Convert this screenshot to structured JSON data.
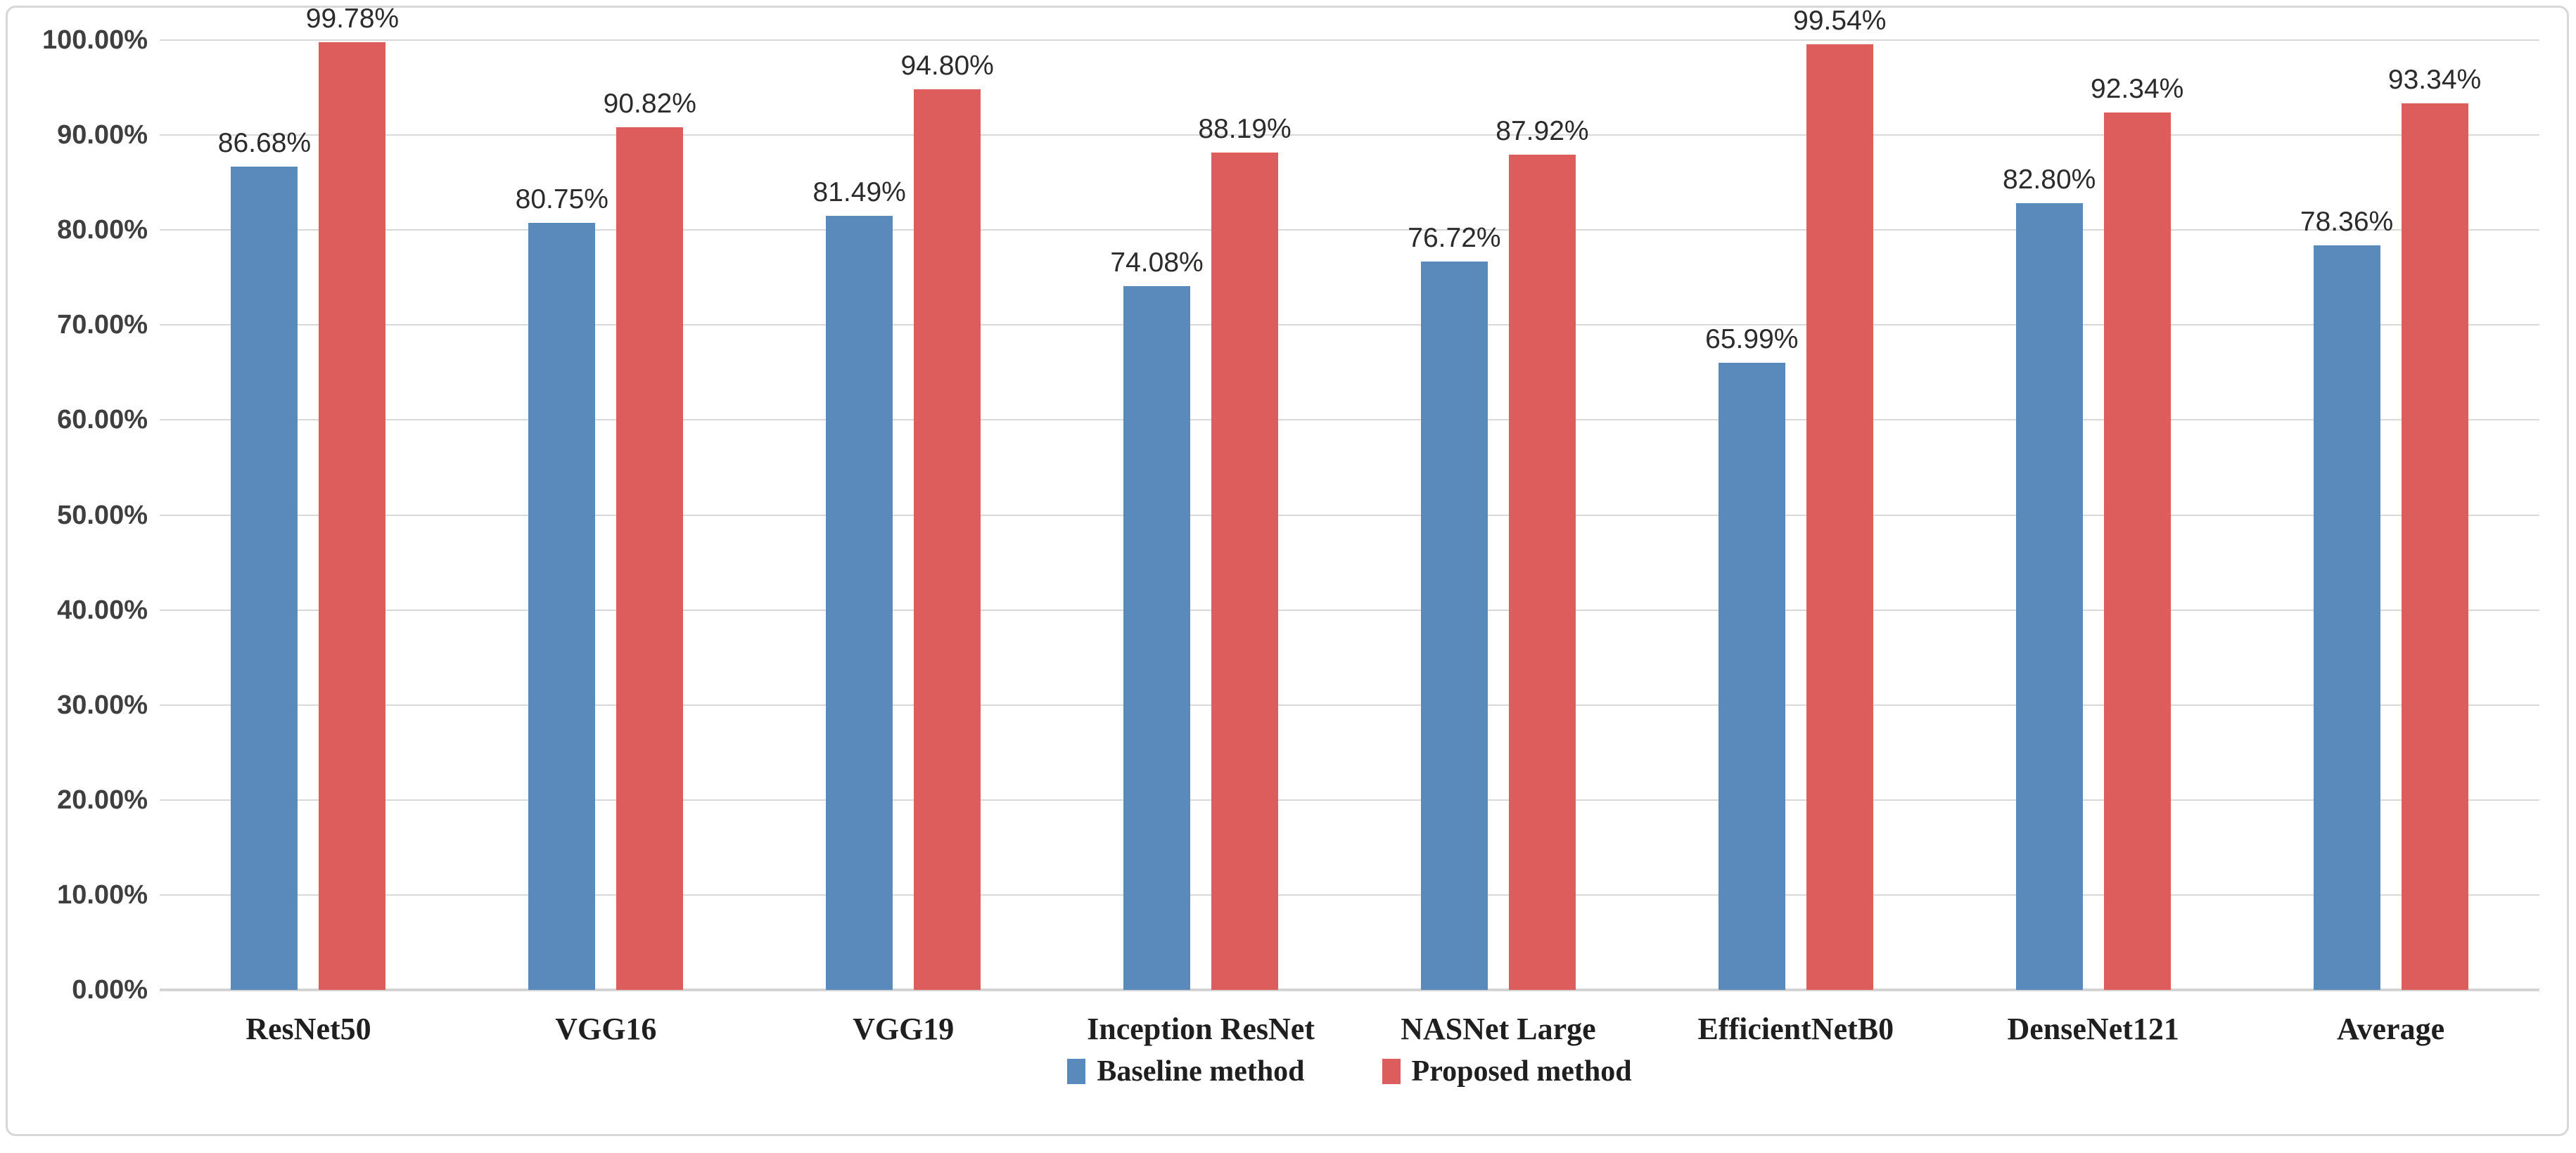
{
  "chart_data": {
    "type": "bar",
    "title": "",
    "xlabel": "",
    "ylabel": "",
    "categories": [
      "ResNet50",
      "VGG16",
      "VGG19",
      "Inception ResNet",
      "NASNet Large",
      "EfficientNetB0",
      "DenseNet121",
      "Average"
    ],
    "series": [
      {
        "name": "Baseline method",
        "color": "#5a89bc",
        "values": [
          86.68,
          80.75,
          81.49,
          74.08,
          76.72,
          65.99,
          82.8,
          78.36
        ]
      },
      {
        "name": "Proposed method",
        "color": "#dd5c5c",
        "values": [
          99.78,
          90.82,
          94.8,
          88.19,
          87.92,
          99.54,
          92.34,
          93.34
        ]
      }
    ],
    "data_labels": {
      "baseline": [
        "86.68%",
        "80.75%",
        "81.49%",
        "74.08%",
        "76.72%",
        "65.99%",
        "82.80%",
        "78.36%"
      ],
      "proposed": [
        "99.78%",
        "90.82%",
        "94.80%",
        "88.19%",
        "87.92%",
        "99.54%",
        "92.34%",
        "93.34%"
      ]
    },
    "ylim": [
      0,
      100
    ],
    "ytick_step": 10,
    "ytick_labels": [
      "0.00%",
      "10.00%",
      "20.00%",
      "30.00%",
      "40.00%",
      "50.00%",
      "60.00%",
      "70.00%",
      "80.00%",
      "90.00%",
      "100.00%"
    ],
    "grid": true,
    "legend_position": "bottom",
    "legend": [
      "Baseline method",
      "Proposed method"
    ]
  },
  "colors": {
    "baseline_blue": "#5a89bc",
    "proposed_red": "#dd5c5c",
    "gridline": "#d9d9d9",
    "tick_text": "#3f3f3f",
    "label_text": "#2b2b2b",
    "category_text": "#1f1f1f",
    "frame_border": "#d8d8d8",
    "background": "#ffffff"
  }
}
